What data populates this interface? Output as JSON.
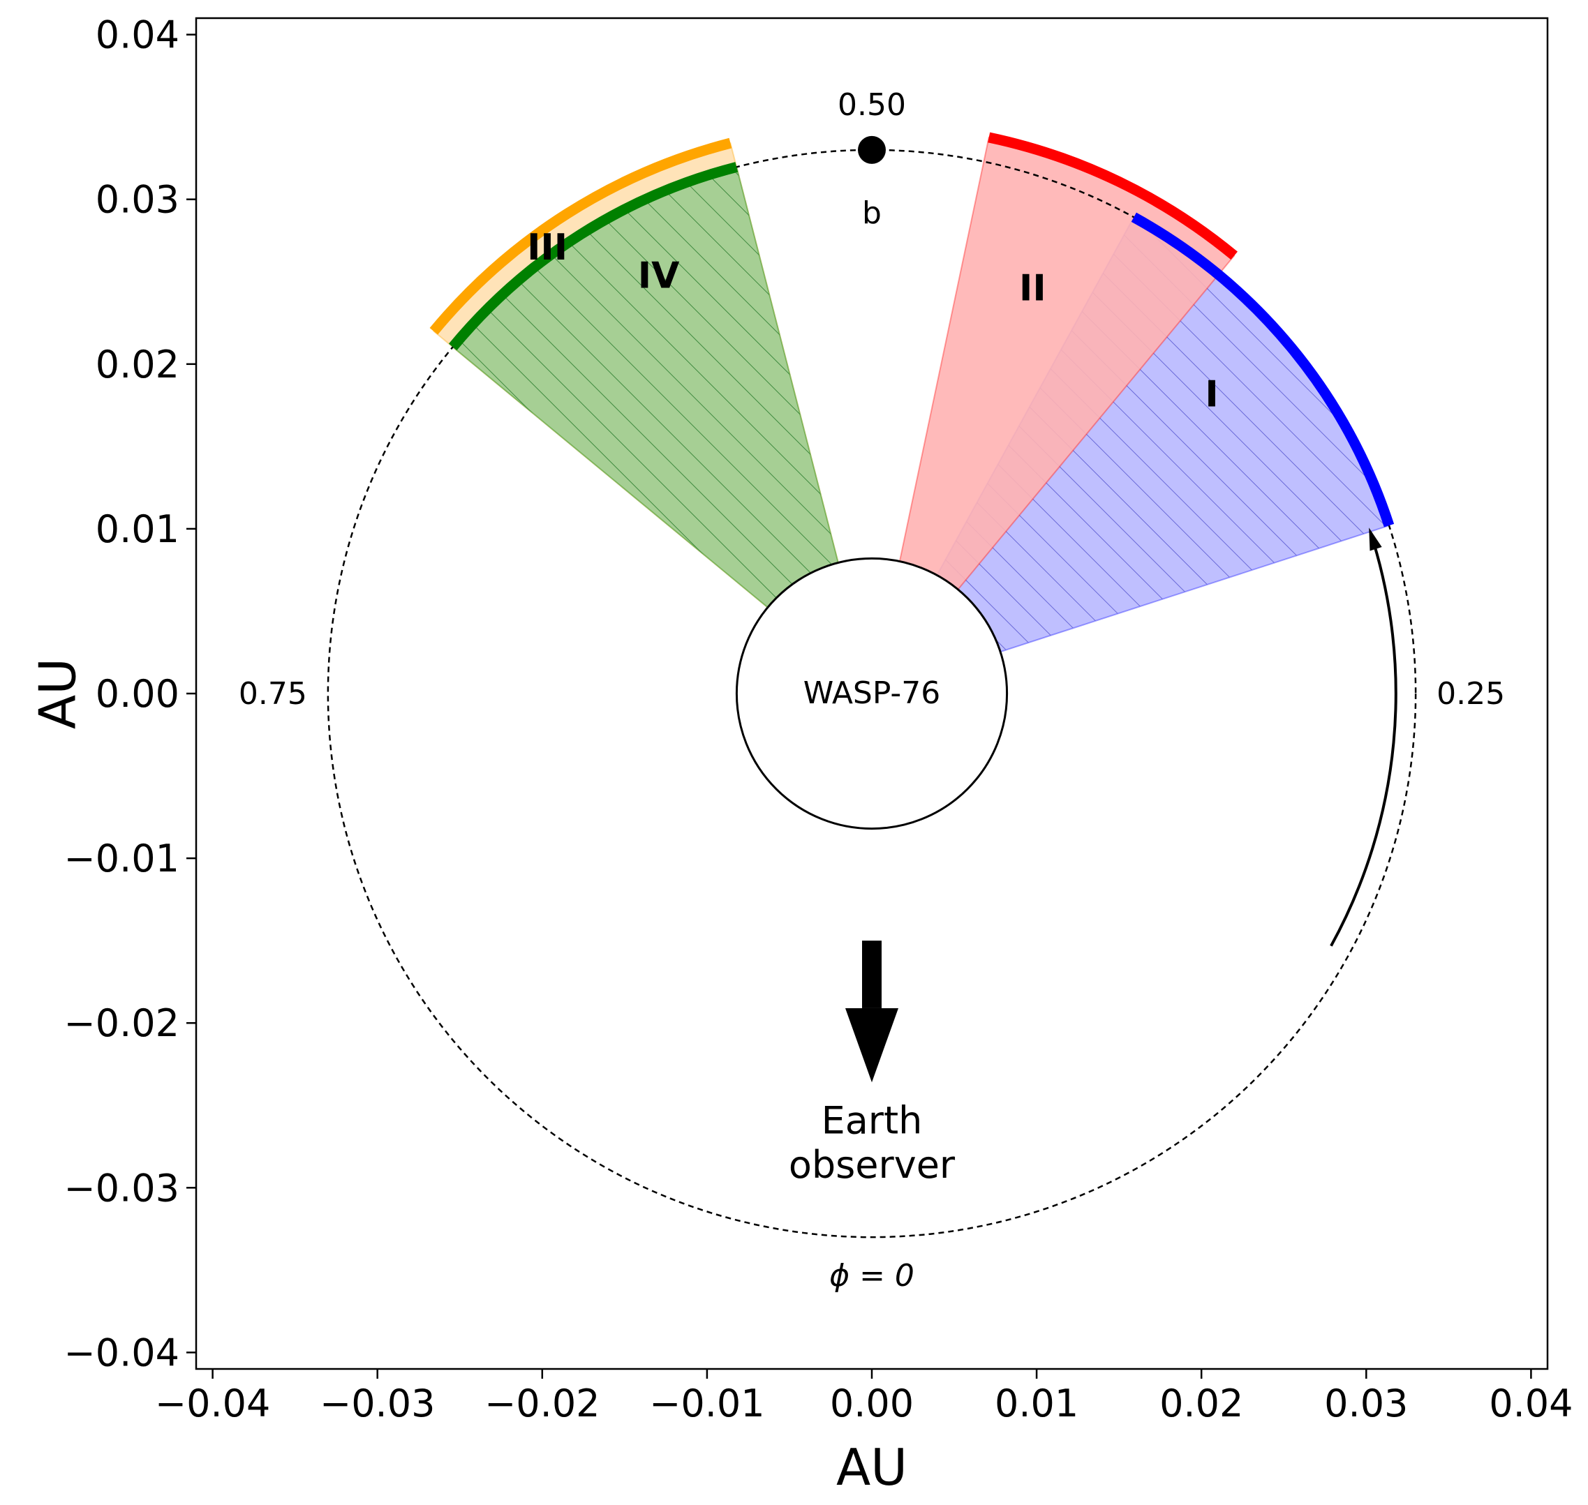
{
  "chart_data": {
    "type": "scatter",
    "xlabel": "AU",
    "ylabel": "AU",
    "xlim": [
      -0.041,
      0.041
    ],
    "ylim": [
      -0.041,
      0.041
    ],
    "xticks": [
      -0.04,
      -0.03,
      -0.02,
      -0.01,
      0.0,
      0.01,
      0.02,
      0.03,
      0.04
    ],
    "yticks": [
      -0.04,
      -0.03,
      -0.02,
      -0.01,
      0.0,
      0.01,
      0.02,
      0.03,
      0.04
    ],
    "xtick_labels": [
      "−0.04",
      "−0.03",
      "−0.02",
      "−0.01",
      "0.00",
      "0.01",
      "0.02",
      "0.03",
      "0.04"
    ],
    "ytick_labels": [
      "−0.04",
      "−0.03",
      "−0.02",
      "−0.01",
      "0.00",
      "0.01",
      "0.02",
      "0.03",
      "0.04"
    ],
    "grid": false,
    "orbit": {
      "radius_au": 0.033,
      "style": "dashed"
    },
    "star": {
      "label": "WASP-76",
      "radius_au": 0.0082
    },
    "planet": {
      "label": "b",
      "phase": 0.5,
      "x": 0.0,
      "y": 0.033
    },
    "phase_labels": [
      {
        "text": "0.50",
        "phase": 0.5
      },
      {
        "text": "0.25",
        "phase": 0.25
      },
      {
        "text": "0.75",
        "phase": 0.75
      },
      {
        "text": "ϕ = 0",
        "phase": 0.0
      }
    ],
    "phase_ranges": [
      {
        "name": "I",
        "phase_start": 0.3,
        "phase_end": 0.42,
        "color": "#0000ff",
        "fill": "#aaaaff",
        "hatched": true,
        "arc_radius_au": 0.033
      },
      {
        "name": "II",
        "phase_start": 0.39,
        "phase_end": 0.467,
        "color": "#ff0000",
        "fill": "#ffb2b2",
        "hatched": false,
        "arc_radius_au": 0.0345
      },
      {
        "name": "III",
        "phase_start": 0.54,
        "phase_end": 0.64,
        "color": "#ffa500",
        "fill": "#ffe0b0",
        "hatched": false,
        "arc_radius_au": 0.0345
      },
      {
        "name": "IV",
        "phase_start": 0.54,
        "phase_end": 0.64,
        "color": "#008000",
        "fill": "#88c888",
        "hatched": true,
        "arc_radius_au": 0.033
      }
    ],
    "direction_arrow": {
      "phase_start": 0.17,
      "phase_end": 0.3
    },
    "observer": {
      "label_line1": "Earth",
      "label_line2": "observer"
    }
  }
}
